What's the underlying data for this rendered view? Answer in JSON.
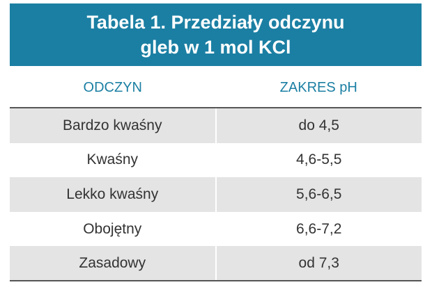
{
  "header": {
    "title_lines": [
      "Tabela 1. Przedziały odczynu",
      "gleb w 1 mol KCl"
    ]
  },
  "table": {
    "columns": [
      "ODCZYN",
      "ZAKRES pH"
    ],
    "rows": [
      [
        "Bardzo kwaśny",
        "do 4,5"
      ],
      [
        "Kwaśny",
        "4,6-5,5"
      ],
      [
        "Lekko kwaśny",
        "5,6-6,5"
      ],
      [
        "Obojętny",
        "6,6-7,2"
      ],
      [
        "Zasadowy",
        "od 7,3"
      ]
    ]
  }
}
